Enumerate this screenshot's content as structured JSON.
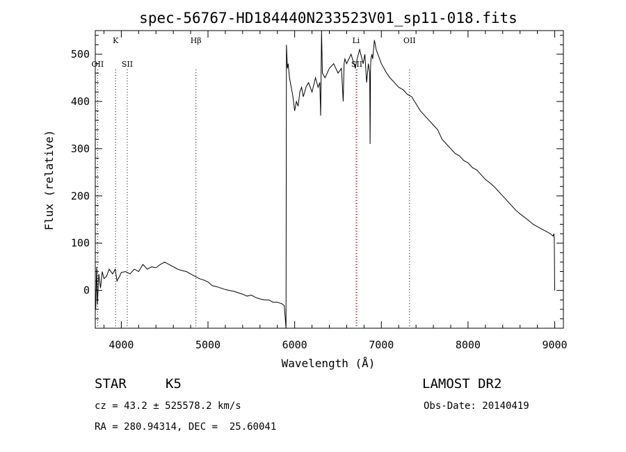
{
  "chart_data": {
    "type": "line",
    "title": "spec-56767-HD184440N233523V01_sp11-018.fits",
    "xlabel": "Wavelength (Å)",
    "ylabel": "Flux (relative)",
    "xlim": [
      3700,
      9100
    ],
    "ylim": [
      -80,
      550
    ],
    "xticks": [
      4000,
      5000,
      6000,
      7000,
      8000,
      9000
    ],
    "yticks": [
      0,
      100,
      200,
      300,
      400,
      500
    ],
    "grid": false,
    "series": [
      {
        "x": [
          3705,
          3715,
          3725,
          3740,
          3760,
          3780,
          3800,
          3830,
          3860,
          3900,
          3930,
          3950,
          3980,
          4000,
          4050,
          4100,
          4150,
          4200,
          4250,
          4300,
          4350,
          4400,
          4450,
          4500,
          4550,
          4600,
          4650,
          4700,
          4750,
          4800,
          4850,
          4900,
          4950,
          5000,
          5050,
          5100,
          5150,
          5200,
          5250,
          5300,
          5350,
          5400,
          5450,
          5500,
          5550,
          5600,
          5650,
          5700,
          5750,
          5800,
          5850,
          5880,
          5900,
          5905,
          5910,
          5915,
          5925,
          5940,
          5960,
          5980,
          6000,
          6020,
          6040,
          6060,
          6080,
          6100,
          6130,
          6160,
          6200,
          6240,
          6270,
          6290,
          6300,
          6310,
          6320,
          6350,
          6400,
          6450,
          6500,
          6540,
          6560,
          6570,
          6580,
          6600,
          6650,
          6700,
          6720,
          6750,
          6790,
          6810,
          6830,
          6850,
          6865,
          6870,
          6875,
          6880,
          6890,
          6900,
          6920,
          6940,
          6960,
          6980,
          7000,
          7030,
          7060,
          7100,
          7150,
          7200,
          7250,
          7300,
          7350,
          7400,
          7450,
          7500,
          7550,
          7600,
          7650,
          7700,
          7750,
          7800,
          7850,
          7900,
          7950,
          8000,
          8050,
          8100,
          8150,
          8200,
          8250,
          8300,
          8350,
          8400,
          8450,
          8500,
          8550,
          8600,
          8650,
          8700,
          8750,
          8800,
          8850,
          8900,
          8950,
          8980,
          8990,
          8995,
          9000
        ],
        "y": [
          -40,
          50,
          -30,
          35,
          5,
          40,
          25,
          30,
          45,
          35,
          45,
          20,
          30,
          38,
          40,
          35,
          45,
          40,
          55,
          45,
          50,
          48,
          55,
          60,
          55,
          50,
          45,
          42,
          40,
          35,
          30,
          25,
          22,
          18,
          10,
          8,
          5,
          2,
          0,
          -2,
          -5,
          -8,
          -12,
          -10,
          -15,
          -18,
          -20,
          -20,
          -25,
          -25,
          -28,
          -32,
          -80,
          520,
          500,
          470,
          480,
          450,
          430,
          410,
          380,
          400,
          390,
          420,
          430,
          410,
          430,
          440,
          420,
          450,
          430,
          440,
          370,
          550,
          460,
          450,
          470,
          480,
          460,
          470,
          400,
          480,
          490,
          480,
          500,
          470,
          490,
          510,
          480,
          500,
          440,
          480,
          460,
          310,
          470,
          490,
          500,
          490,
          530,
          510,
          500,
          490,
          480,
          470,
          460,
          450,
          440,
          430,
          425,
          415,
          410,
          395,
          380,
          370,
          360,
          350,
          340,
          320,
          310,
          300,
          290,
          285,
          275,
          270,
          260,
          255,
          245,
          235,
          228,
          220,
          210,
          200,
          190,
          180,
          170,
          162,
          155,
          148,
          140,
          135,
          130,
          125,
          120,
          115,
          120,
          110,
          0
        ]
      }
    ],
    "spectral_lines": [
      {
        "name": "OII",
        "wavelength": 3727,
        "label_row": 2,
        "color": "#000000"
      },
      {
        "name": "K",
        "wavelength": 3934,
        "label_row": 1,
        "color": "#000000"
      },
      {
        "name": "SII",
        "wavelength": 4069,
        "label_row": 2,
        "color": "#000000"
      },
      {
        "name": "Hβ",
        "wavelength": 4861,
        "label_row": 1,
        "color": "#000000"
      },
      {
        "name": "Li",
        "wavelength": 6708,
        "label_row": 1,
        "color": "#ff0000"
      },
      {
        "name": "SII",
        "wavelength": 6717,
        "label_row": 2,
        "color": "#000000"
      },
      {
        "name": "OII",
        "wavelength": 7325,
        "label_row": 1,
        "color": "#000000"
      }
    ]
  },
  "info": {
    "object_class": "STAR",
    "subclass": "K5",
    "survey": "LAMOST DR2",
    "cz": "cz = 43.2 ± 525578.2 km/s",
    "obs_date": "Obs-Date: 20140419",
    "coords": "RA = 280.94314, DEC =  25.60041"
  }
}
